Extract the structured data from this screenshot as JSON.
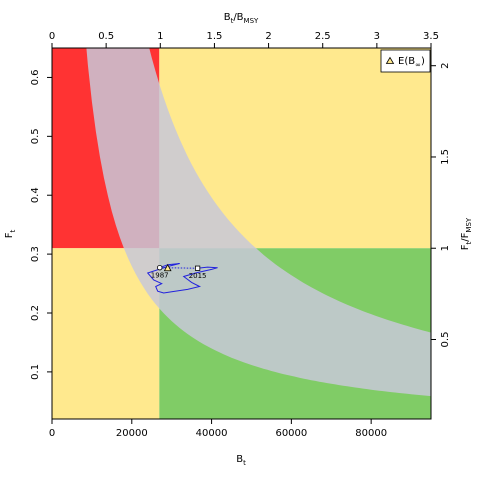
{
  "chart_data": {
    "type": "kobe-phase-plot",
    "axes": {
      "bottom": {
        "label": "B",
        "label_sub": "t",
        "lim": [
          0,
          95000
        ],
        "ticks": [
          0,
          20000,
          40000,
          60000,
          80000
        ]
      },
      "left": {
        "label": "F",
        "label_sub": "t",
        "lim": [
          0.02,
          0.65
        ],
        "ticks": [
          0.1,
          0.2,
          0.3,
          0.4,
          0.5,
          0.6
        ]
      },
      "top": {
        "label": "B",
        "label_sub": "t",
        "label_mid": "/B",
        "label_sub2": "MSY",
        "lim": [
          0,
          3.5
        ],
        "ticks": [
          0,
          0.5,
          1,
          1.5,
          2,
          2.5,
          3,
          3.5
        ],
        "tick_labels": [
          "0",
          "0.5",
          "1",
          "1.5",
          "2",
          "2.5",
          "3",
          "3.5"
        ]
      },
      "right": {
        "label": "F",
        "label_sub": "t",
        "label_mid": "/F",
        "label_sub2": "MSY",
        "lim": [
          0.0645,
          2.097
        ],
        "ticks": [
          0.5,
          1,
          1.5,
          2
        ],
        "tick_labels": [
          "0.5",
          "1",
          "1.5",
          "2"
        ]
      }
    },
    "reference": {
      "Bmsy": 26900,
      "Fmsy": 0.31
    },
    "quadrant_colors": {
      "overfished_overfishing": "#ff3333",
      "caution": "#ffe98e",
      "healthy": "#80cc66",
      "msy_band": "#c8c8d8"
    },
    "msy_band": {
      "lower_k": 0.67,
      "upper_k": 1.9,
      "comment_free": ""
    },
    "trajectory": {
      "color": "#2222dd",
      "points": [
        [
          27000,
          0.277
        ],
        [
          29000,
          0.282
        ],
        [
          32000,
          0.284
        ],
        [
          29000,
          0.279
        ],
        [
          24000,
          0.268
        ],
        [
          25500,
          0.256
        ],
        [
          27500,
          0.25
        ],
        [
          26000,
          0.245
        ],
        [
          26500,
          0.237
        ],
        [
          28000,
          0.234
        ],
        [
          30000,
          0.236
        ],
        [
          34000,
          0.24
        ],
        [
          37000,
          0.245
        ],
        [
          35000,
          0.252
        ],
        [
          33000,
          0.262
        ],
        [
          36000,
          0.268
        ],
        [
          40000,
          0.274
        ],
        [
          41500,
          0.277
        ],
        [
          39000,
          0.278
        ],
        [
          36500,
          0.276
        ]
      ],
      "first_year": "1987",
      "last_year": "2015",
      "first_point": [
        27000,
        0.277
      ],
      "last_point": [
        36500,
        0.276
      ]
    },
    "equilibrium_point": [
      29000,
      0.276
    ],
    "legend": {
      "position": "top-right",
      "entries": [
        {
          "symbol": "triangle",
          "label": "E(B",
          "label_sub": "∞",
          "label_end": ")"
        }
      ]
    }
  }
}
